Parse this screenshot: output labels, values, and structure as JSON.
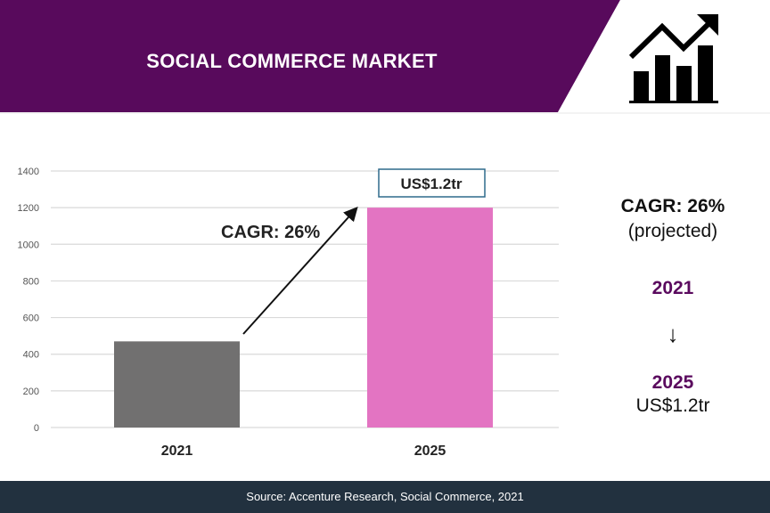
{
  "header": {
    "title": "SOCIAL COMMERCE MARKET",
    "icon": "growth-chart-icon",
    "color": "#580a5c"
  },
  "chart_data": {
    "type": "bar",
    "categories": [
      "2021",
      "2025"
    ],
    "values": [
      470,
      1200
    ],
    "colors": [
      "#717070",
      "#e374c2"
    ],
    "ylim": [
      0,
      1400
    ],
    "yticks": [
      0,
      200,
      400,
      600,
      800,
      1000,
      1200,
      1400
    ],
    "grid": true,
    "annotations": {
      "bar_label": "US$1.2tr",
      "arrow_label": "CAGR: 26%"
    }
  },
  "side": {
    "cagr": "CAGR: 26%",
    "projected": "(projected)",
    "from_year": "2021",
    "arrow_icon": "arrow-down-icon",
    "to_year": "2025",
    "to_value": "US$1.2tr"
  },
  "footer": {
    "source": "Source: Accenture Research, Social Commerce, 2021"
  }
}
